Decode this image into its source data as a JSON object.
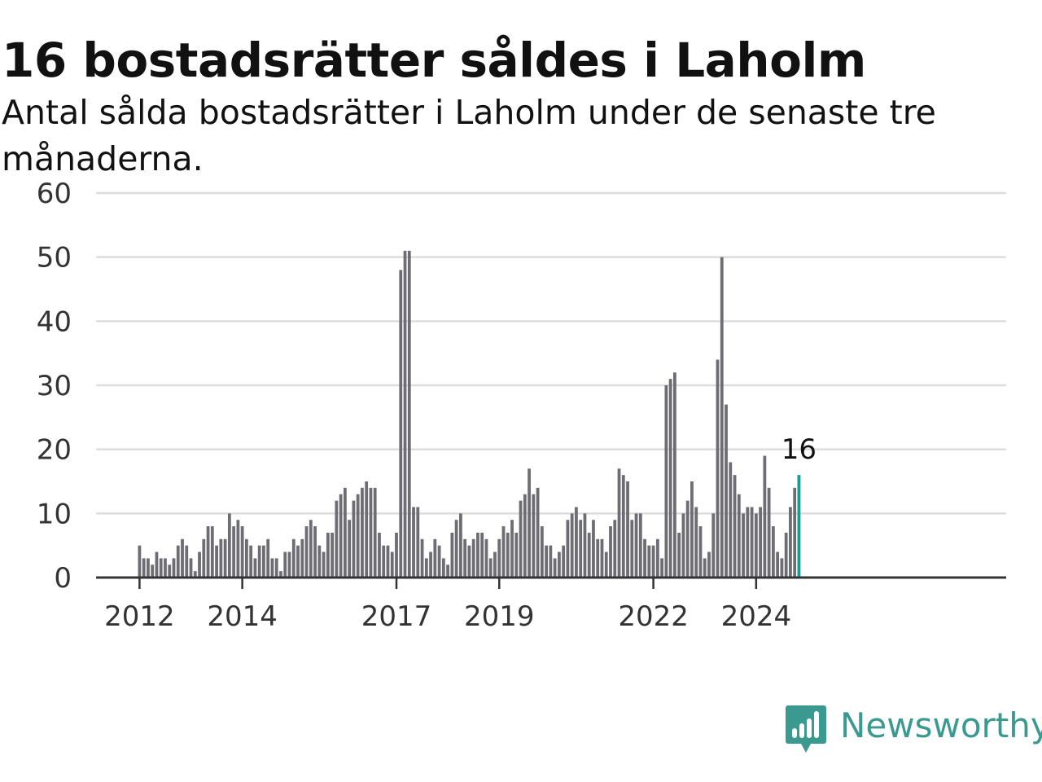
{
  "header": {
    "title": "16 bostadsrätter såldes i Laholm",
    "subtitle": "Antal sålda bostadsrätter i Laholm under de senaste tre månaderna."
  },
  "brand": {
    "name": "Newsworthy",
    "icon": "newsworthy-logo-icon",
    "color": "#3a9a90"
  },
  "colors": {
    "bar": "#6f6d74",
    "highlight": "#1a9b92",
    "grid": "#dddddd",
    "axis": "#333333"
  },
  "chart_data": {
    "type": "bar",
    "title": "16 bostadsrätter såldes i Laholm",
    "subtitle": "Antal sålda bostadsrätter i Laholm under de senaste tre månaderna.",
    "x_unit": "month",
    "start_month": "2012-01",
    "values": [
      5,
      3,
      3,
      2,
      4,
      3,
      3,
      2,
      3,
      5,
      6,
      5,
      3,
      1,
      4,
      6,
      8,
      8,
      5,
      6,
      6,
      10,
      8,
      9,
      8,
      6,
      5,
      3,
      5,
      5,
      6,
      3,
      3,
      1,
      4,
      4,
      6,
      5,
      6,
      8,
      9,
      8,
      5,
      4,
      7,
      7,
      12,
      13,
      14,
      9,
      12,
      13,
      14,
      15,
      14,
      14,
      7,
      5,
      5,
      4,
      7,
      48,
      51,
      51,
      11,
      11,
      6,
      3,
      4,
      6,
      5,
      3,
      2,
      7,
      9,
      10,
      6,
      5,
      6,
      7,
      7,
      6,
      3,
      4,
      6,
      8,
      7,
      9,
      7,
      12,
      13,
      17,
      13,
      14,
      8,
      5,
      5,
      3,
      4,
      5,
      9,
      10,
      11,
      9,
      10,
      7,
      9,
      6,
      6,
      4,
      8,
      9,
      17,
      16,
      15,
      9,
      10,
      10,
      6,
      5,
      5,
      6,
      3,
      30,
      31,
      32,
      7,
      10,
      12,
      15,
      11,
      8,
      3,
      4,
      10,
      34,
      50,
      27,
      18,
      16,
      13,
      10,
      11,
      11,
      10,
      11,
      19,
      14,
      8,
      4,
      3,
      7,
      11,
      14,
      16
    ],
    "highlight_last": true,
    "highlight_label": "16",
    "x_tick_labels": [
      "2012",
      "2014",
      "2017",
      "2019",
      "2022",
      "2024"
    ],
    "x_tick_index": [
      0,
      24,
      60,
      84,
      120,
      144
    ],
    "y_ticks": [
      0,
      10,
      20,
      30,
      40,
      50,
      60
    ],
    "ylim": [
      0,
      60
    ],
    "xlabel": "",
    "ylabel": "",
    "grid": true,
    "legend": "none"
  }
}
